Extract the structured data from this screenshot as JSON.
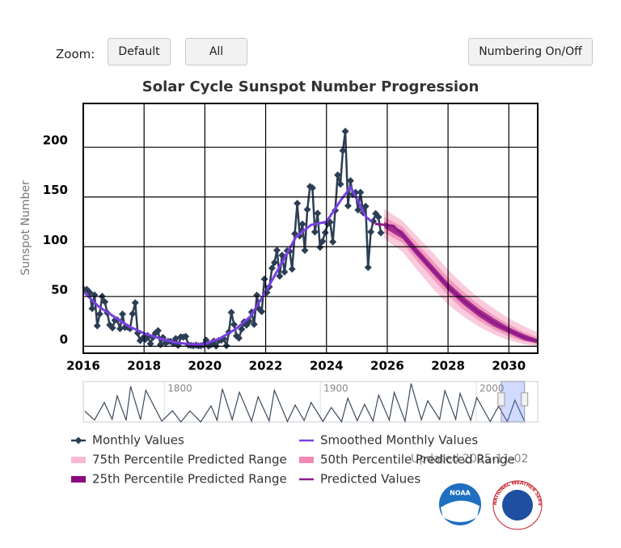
{
  "ui": {
    "zoom_label": "Zoom:",
    "buttons": [
      "Default",
      "All",
      "Numbering On/Off"
    ],
    "updated": "Updated 2025-11-02",
    "logos": {
      "noaa": "NOAA",
      "nws": "NATIONAL WEATHER SERVICE"
    }
  },
  "chart_data": [
    {
      "type": "line",
      "title": "Solar Cycle Sunspot Number Progression",
      "y_label": "Sunspot Number",
      "xlim": [
        2016,
        2030.95
      ],
      "ylim": [
        -7,
        244
      ],
      "xticks": [
        2016,
        2018,
        2020,
        2022,
        2024,
        2026,
        2028,
        2030
      ],
      "yticks": [
        0,
        50,
        100,
        150,
        200
      ],
      "grid": true,
      "series": [
        {
          "name": "Monthly Values",
          "color": "#2c3e55",
          "marker": "diamond",
          "x": [
            2016.04,
            2016.12,
            2016.21,
            2016.29,
            2016.37,
            2016.46,
            2016.54,
            2016.62,
            2016.71,
            2016.79,
            2016.87,
            2016.96,
            2017.04,
            2017.12,
            2017.21,
            2017.29,
            2017.37,
            2017.46,
            2017.54,
            2017.62,
            2017.71,
            2017.79,
            2017.87,
            2017.96,
            2018.04,
            2018.12,
            2018.21,
            2018.29,
            2018.37,
            2018.46,
            2018.54,
            2018.62,
            2018.71,
            2018.79,
            2018.87,
            2018.96,
            2019.04,
            2019.12,
            2019.21,
            2019.29,
            2019.37,
            2019.46,
            2019.54,
            2019.62,
            2019.71,
            2019.79,
            2019.87,
            2019.96,
            2020.04,
            2020.12,
            2020.21,
            2020.29,
            2020.37,
            2020.46,
            2020.54,
            2020.62,
            2020.71,
            2020.79,
            2020.87,
            2020.96,
            2021.04,
            2021.12,
            2021.21,
            2021.29,
            2021.37,
            2021.46,
            2021.54,
            2021.62,
            2021.71,
            2021.79,
            2021.87,
            2021.96,
            2022.04,
            2022.12,
            2022.21,
            2022.29,
            2022.37,
            2022.46,
            2022.54,
            2022.62,
            2022.71,
            2022.79,
            2022.87,
            2022.96,
            2023.04,
            2023.12,
            2023.21,
            2023.29,
            2023.37,
            2023.46,
            2023.54,
            2023.62,
            2023.71,
            2023.79,
            2023.87,
            2023.96,
            2024.04,
            2024.12,
            2024.21,
            2024.29,
            2024.37,
            2024.46,
            2024.54,
            2024.62,
            2024.71,
            2024.79,
            2024.87,
            2024.96,
            2025.04,
            2025.12,
            2025.21,
            2025.29,
            2025.37,
            2025.46,
            2025.54,
            2025.62,
            2025.71,
            2025.79
          ],
          "values": [
            56.6,
            57.1,
            54.1,
            37.9,
            51.5,
            20.5,
            32.4,
            50.2,
            44.6,
            33.4,
            21.4,
            18.5,
            26.1,
            26.4,
            17.7,
            32.3,
            18.9,
            19.2,
            17.8,
            32.6,
            43.7,
            13.2,
            5.7,
            8.2,
            6.8,
            10.7,
            2.5,
            8.9,
            13.1,
            15.6,
            1.6,
            8.7,
            3.3,
            4.9,
            4.9,
            3.1,
            7.7,
            0.8,
            9.4,
            9.1,
            9.9,
            1.2,
            0.9,
            0.5,
            1.1,
            0.4,
            0.5,
            1.5,
            6.2,
            0.2,
            1.5,
            5.2,
            0.2,
            5.8,
            6.1,
            7.5,
            0.6,
            14.4,
            34.0,
            21.8,
            10.4,
            8.2,
            17.2,
            24.5,
            21.2,
            25.0,
            34.3,
            22.0,
            51.3,
            37.4,
            34.8,
            67.5,
            54.0,
            59.7,
            78.5,
            84.1,
            96.5,
            70.5,
            91.4,
            74.6,
            96.0,
            95.5,
            77.6,
            113.1,
            143.6,
            110.9,
            122.8,
            96.4,
            137.4,
            160.5,
            159.1,
            114.8,
            133.6,
            99.4,
            105.4,
            114.2,
            123.0,
            124.7,
            104.9,
            136.5,
            172.1,
            162.9,
            196.6,
            216.0,
            141.1,
            166.3,
            152.5,
            154.5,
            137.0,
            154.6,
            134.2,
            140.6,
            79.2,
            114.9,
            125.6,
            133.3,
            129.9,
            114.0
          ]
        },
        {
          "name": "Smoothed Monthly Values",
          "color": "#7b3fe4",
          "x": [
            2016.0,
            2016.5,
            2017.0,
            2017.5,
            2018.0,
            2018.5,
            2019.0,
            2019.5,
            2019.95,
            2020.5,
            2021.0,
            2021.5,
            2022.0,
            2022.5,
            2023.0,
            2023.5,
            2024.0,
            2024.5,
            2024.8,
            2025.0,
            2025.3,
            2025.5
          ],
          "values": [
            55,
            40,
            30,
            20,
            13,
            8,
            4,
            2,
            1.8,
            8,
            17,
            30,
            55,
            82,
            110,
            122,
            125,
            148,
            160,
            148,
            130,
            125
          ]
        },
        {
          "name": "75th Percentile Predicted Range",
          "color": "#f7b9d2",
          "band": true,
          "x": [
            2025.9,
            2026.5,
            2027,
            2027.5,
            2028,
            2028.5,
            2029,
            2029.5,
            2030,
            2030.5,
            2030.95
          ],
          "upper": [
            138,
            126,
            110,
            94,
            77,
            62,
            49,
            38,
            28,
            20,
            14
          ],
          "lower": [
            108,
            95,
            76,
            58,
            42,
            30,
            20,
            12,
            6,
            2,
            0
          ]
        },
        {
          "name": "50th Percentile Predicted Range",
          "color": "#f08ab4",
          "band": true,
          "x": [
            2025.9,
            2026.5,
            2027,
            2027.5,
            2028,
            2028.5,
            2029,
            2029.5,
            2030,
            2030.5,
            2030.95
          ],
          "upper": [
            130,
            120,
            103,
            86,
            69,
            55,
            42,
            31,
            22,
            14,
            9
          ],
          "lower": [
            114,
            104,
            85,
            68,
            51,
            37,
            26,
            17,
            10,
            5,
            2
          ]
        },
        {
          "name": "25th Percentile Predicted Range",
          "color": "#8a0a7c",
          "band": true,
          "x": [
            2025.9,
            2026.5,
            2027,
            2027.5,
            2028,
            2028.5,
            2029,
            2029.5,
            2030,
            2030.5,
            2030.95
          ],
          "upper": [
            125,
            116,
            98,
            81,
            64,
            50,
            38,
            28,
            19,
            12,
            7
          ],
          "lower": [
            119,
            108,
            90,
            73,
            56,
            42,
            30,
            20,
            13,
            6,
            3
          ]
        },
        {
          "name": "Predicted Values",
          "color": "#8e1a8a",
          "x": [
            2025.6,
            2026.2,
            2026.5,
            2027,
            2027.5,
            2028,
            2028.5,
            2029,
            2029.5,
            2030,
            2030.5,
            2030.95
          ],
          "values": [
            123,
            121,
            112,
            94,
            77,
            60,
            46,
            34,
            24,
            16,
            9,
            5
          ]
        }
      ]
    },
    {
      "type": "line",
      "xlim": [
        1748,
        2039.4
      ],
      "ylim": [
        0,
        300
      ],
      "xticks": [
        1800,
        1900,
        2000
      ],
      "series": [
        {
          "color": "#3b4a5c",
          "x": [
            1749,
            1755.2,
            1761.5,
            1766.5,
            1769.7,
            1775.5,
            1778.4,
            1784.7,
            1788.1,
            1798.3,
            1805.2,
            1810.6,
            1816.4,
            1823.3,
            1829.9,
            1833.8,
            1837.2,
            1843.5,
            1848.1,
            1855.9,
            1860.1,
            1867.2,
            1870.6,
            1878.9,
            1883.9,
            1889.6,
            1894.1,
            1901.7,
            1907,
            1913.6,
            1917.6,
            1923.6,
            1928.4,
            1933.8,
            1937.4,
            1944.2,
            1947.4,
            1954.3,
            1958.2,
            1964.8,
            1968.9,
            1976.5,
            1979.9,
            1986.8,
            1989.6,
            1996.4,
            2000.3,
            2008.9,
            2014.3,
            2019.9,
            2024.8,
            2030.95
          ],
          "values": [
            80,
            14,
            144,
            19,
            193,
            12,
            264,
            16,
            235,
            6,
            82,
            0,
            81,
            0,
            119,
            12,
            245,
            17,
            220,
            6,
            186,
            8,
            234,
            3,
            125,
            10,
            144,
            4,
            107,
            2,
            176,
            9,
            130,
            6,
            199,
            13,
            219,
            5,
            285,
            16,
            157,
            18,
            233,
            20,
            212,
            12,
            180,
            3,
            116,
            2,
            161,
            5
          ]
        }
      ]
    }
  ]
}
